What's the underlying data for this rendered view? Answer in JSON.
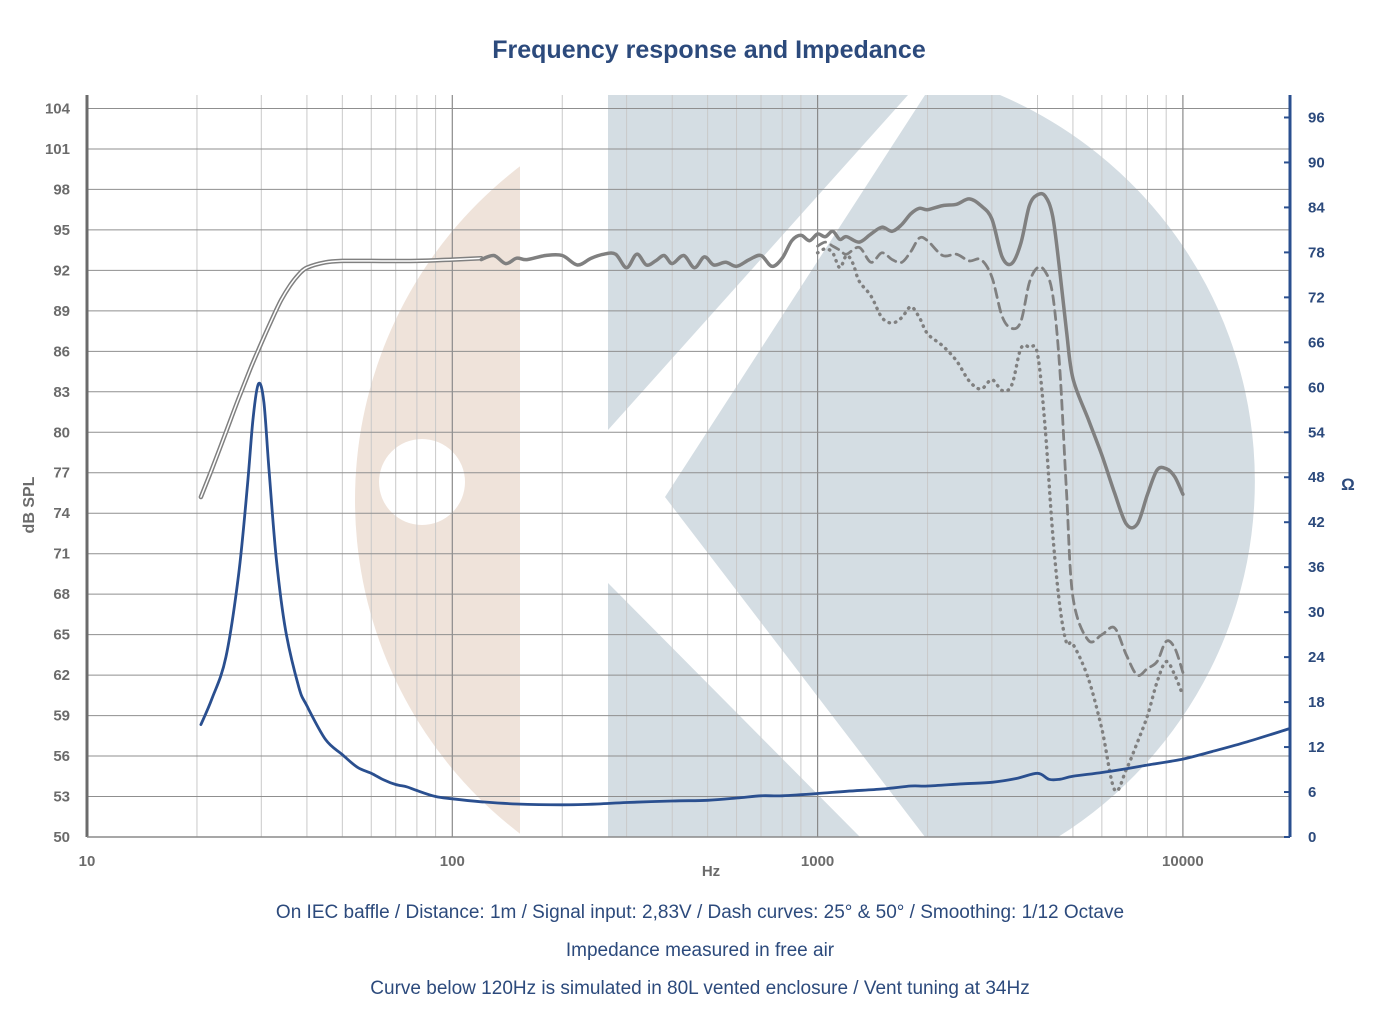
{
  "title": "Frequency response and Impedance",
  "notes": [
    "On IEC baffle / Distance: 1m / Signal input: 2,83V / Dash curves: 25° & 50° / Smoothing: 1/12 Octave",
    "Impedance measured in free air",
    "Curve below 120Hz is simulated in 80L vented enclosure / Vent tuning at 34Hz"
  ],
  "colors": {
    "spl": "#808080",
    "impedance": "#2a4f8f",
    "title": "#2c4a7c",
    "watermark_left": "#efe3da",
    "watermark_right": "#d4dde3"
  },
  "chart_data": {
    "type": "line",
    "title": "Frequency response and Impedance",
    "xlabel": "Hz",
    "ylabel": "dB SPL",
    "y2label": "Ω",
    "xscale": "log",
    "xlim": [
      10,
      20000
    ],
    "ylim": [
      50,
      105
    ],
    "y2lim": [
      0,
      99
    ],
    "grid": true,
    "x_ticks": [
      10,
      100,
      1000,
      10000
    ],
    "y_ticks": [
      50,
      53,
      56,
      59,
      62,
      65,
      68,
      71,
      74,
      77,
      80,
      83,
      86,
      89,
      92,
      95,
      98,
      101,
      104
    ],
    "y2_ticks": [
      0,
      6,
      12,
      18,
      24,
      30,
      36,
      42,
      48,
      54,
      60,
      66,
      72,
      78,
      84,
      90,
      96
    ],
    "series": [
      {
        "axis": "left",
        "style": "solid-double",
        "width": 3,
        "x": [
          20.5,
          22,
          24,
          26,
          28,
          30,
          32,
          34,
          36,
          38,
          40,
          45,
          50,
          60,
          80,
          100,
          120
        ],
        "y": [
          75.2,
          77.3,
          80,
          82.5,
          84.7,
          86.6,
          88.3,
          89.8,
          90.9,
          91.7,
          92.2,
          92.6,
          92.7,
          92.7,
          92.7,
          92.8,
          92.9
        ]
      },
      {
        "axis": "left",
        "style": "solid",
        "width": 3.5,
        "x": [
          120,
          130,
          140,
          150,
          160,
          180,
          200,
          220,
          240,
          260,
          280,
          300,
          320,
          340,
          360,
          380,
          400,
          430,
          460,
          490,
          520,
          560,
          600,
          650,
          700,
          750,
          800,
          850,
          900,
          950,
          1000,
          1050,
          1100,
          1150,
          1200,
          1300,
          1400,
          1500,
          1600,
          1700,
          1800,
          1900,
          2000,
          2200,
          2400,
          2600,
          2800,
          3000,
          3200,
          3400,
          3600,
          3800,
          4000,
          4200,
          4400,
          4600,
          4800,
          5000,
          5500,
          6000,
          6500,
          7000,
          7500,
          8000,
          8500,
          9000,
          9500,
          10000
        ],
        "y": [
          92.8,
          93.1,
          92.5,
          92.9,
          92.8,
          93.1,
          93.1,
          92.4,
          92.9,
          93.2,
          93.2,
          92.2,
          93.2,
          92.4,
          92.7,
          93.1,
          92.5,
          93.1,
          92.2,
          93,
          92.4,
          92.6,
          92.3,
          92.8,
          93.1,
          92.3,
          92.9,
          94.2,
          94.6,
          94.2,
          94.7,
          94.5,
          94.9,
          94.3,
          94.5,
          94.1,
          94.7,
          95.2,
          94.9,
          95.4,
          96.2,
          96.6,
          96.5,
          96.8,
          96.9,
          97.3,
          96.8,
          95.8,
          93,
          92.5,
          94,
          96.8,
          97.6,
          97.5,
          96,
          92,
          87.5,
          84,
          81,
          78.3,
          75.5,
          73.2,
          73.2,
          75.4,
          77.2,
          77.3,
          76.7,
          75.4
        ]
      },
      {
        "axis": "left",
        "style": "dashed",
        "width": 2.8,
        "x": [
          1000,
          1050,
          1100,
          1150,
          1200,
          1300,
          1400,
          1500,
          1600,
          1700,
          1800,
          1900,
          2000,
          2200,
          2400,
          2600,
          2800,
          3000,
          3200,
          3400,
          3600,
          3800,
          4000,
          4200,
          4400,
          4600,
          4800,
          5000,
          5500,
          6000,
          6500,
          7000,
          7500,
          8000,
          8500,
          9000,
          9500,
          10000
        ],
        "y": [
          93.8,
          94.1,
          93.8,
          93.5,
          93.2,
          93.7,
          92.6,
          93.3,
          92.8,
          92.6,
          93.4,
          94.4,
          94.2,
          93.1,
          93.2,
          92.7,
          92.8,
          91.5,
          88.6,
          87.7,
          88.2,
          91.1,
          92.2,
          91.9,
          90.2,
          84.8,
          75.6,
          67.8,
          64.6,
          65,
          65.5,
          63.5,
          62,
          62.5,
          63,
          64.5,
          64,
          62.2
        ]
      },
      {
        "axis": "left",
        "style": "dotted",
        "width": 2.8,
        "x": [
          1000,
          1050,
          1100,
          1150,
          1200,
          1250,
          1300,
          1400,
          1500,
          1600,
          1700,
          1800,
          1900,
          2000,
          2200,
          2400,
          2600,
          2800,
          3000,
          3200,
          3400,
          3600,
          3800,
          4000,
          4200,
          4400,
          4600,
          4800,
          5000,
          5500,
          6000,
          6500,
          7000,
          7500,
          8000,
          8500,
          9000,
          9500,
          10000
        ],
        "y": [
          93.3,
          93.6,
          93.3,
          92.2,
          93.1,
          92.5,
          91.2,
          90.1,
          88.5,
          88.1,
          88.5,
          89.3,
          88.5,
          87.3,
          86.4,
          85.3,
          83.8,
          83.2,
          83.9,
          83.1,
          83.5,
          86.2,
          86.3,
          85.8,
          80.2,
          72.5,
          67.2,
          64.4,
          64.3,
          61.8,
          58,
          53.5,
          55,
          57,
          59,
          61.5,
          63,
          62,
          60.5
        ]
      },
      {
        "axis": "right",
        "style": "solid",
        "width": 2.8,
        "x": [
          20.5,
          22,
          24,
          26,
          27.5,
          28.5,
          29.5,
          30.5,
          31.5,
          33,
          35,
          38,
          40,
          45,
          50,
          55,
          60,
          65,
          70,
          75,
          80,
          90,
          100,
          120,
          150,
          200,
          250,
          300,
          400,
          500,
          600,
          700,
          800,
          1000,
          1200,
          1500,
          1800,
          2000,
          2500,
          3000,
          3500,
          4000,
          4300,
          4600,
          5000,
          6000,
          7000,
          8000,
          10000,
          12000,
          15000,
          20000
        ],
        "y": [
          15,
          18.5,
          24,
          35,
          47,
          56,
          60.5,
          58,
          49,
          37,
          27.5,
          20,
          17.5,
          13,
          11,
          9.3,
          8.5,
          7.6,
          7,
          6.7,
          6.2,
          5.4,
          5.1,
          4.7,
          4.4,
          4.3,
          4.4,
          4.6,
          4.8,
          4.9,
          5.2,
          5.5,
          5.5,
          5.8,
          6.1,
          6.4,
          6.8,
          6.8,
          7.1,
          7.3,
          7.8,
          8.5,
          7.7,
          7.7,
          8.1,
          8.6,
          9.1,
          9.6,
          10.4,
          11.4,
          12.7,
          14.6
        ]
      }
    ]
  }
}
